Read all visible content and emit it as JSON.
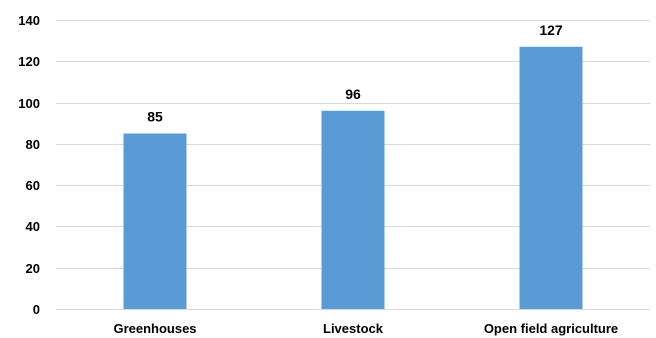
{
  "chart_data": {
    "type": "bar",
    "title": "",
    "xlabel": "",
    "ylabel": "",
    "categories": [
      "Greenhouses",
      "Livestock",
      "Open field agriculture"
    ],
    "values": [
      85,
      96,
      127
    ],
    "data_labels": [
      "85",
      "96",
      "127"
    ],
    "ylim": [
      0,
      140
    ],
    "yticks": [
      0,
      20,
      40,
      60,
      80,
      100,
      120,
      140
    ],
    "grid": true,
    "legend": "none",
    "bar_color": "#5b9bd5",
    "grid_color": "#d9d9d9"
  }
}
